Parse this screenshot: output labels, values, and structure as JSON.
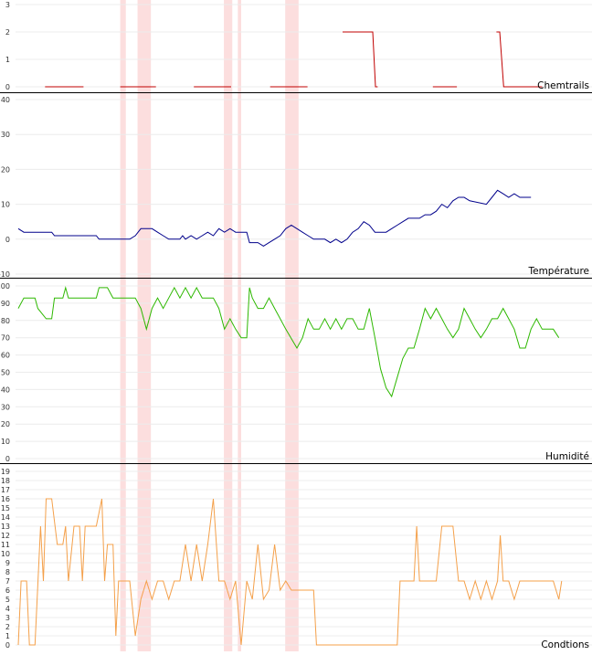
{
  "chart_data": [
    {
      "type": "line",
      "title": "Chemtrails",
      "ylim": [
        0,
        3
      ],
      "yticks": [
        0,
        1,
        2,
        3
      ],
      "x_range": [
        0,
        100
      ],
      "grid": true,
      "color": "#c00000",
      "series": [
        {
          "segments": [
            [
              [
                4.8,
                0
              ],
              [
                11.7,
                0
              ]
            ],
            [
              [
                18.3,
                0
              ],
              [
                24.7,
                0
              ]
            ],
            [
              [
                31.5,
                0
              ],
              [
                38.2,
                0
              ]
            ],
            [
              [
                45.2,
                0
              ],
              [
                51.9,
                0
              ]
            ],
            [
              [
                58.2,
                2
              ],
              [
                63.6,
                2
              ],
              [
                64.1,
                0
              ],
              [
                64.5,
                0
              ]
            ],
            [
              [
                74.4,
                0
              ],
              [
                78.7,
                0
              ]
            ],
            [
              [
                85.8,
                2
              ],
              [
                86.4,
                2
              ],
              [
                87.1,
                0
              ],
              [
                94,
                0
              ]
            ]
          ]
        }
      ]
    },
    {
      "type": "line",
      "title": "Température",
      "ylim": [
        -10,
        40
      ],
      "yticks": [
        -10,
        0,
        10,
        20,
        30,
        40
      ],
      "x_range": [
        0,
        100
      ],
      "grid": true,
      "color": "#00008b",
      "highlight_color": "#7b1fa2",
      "series": [
        {
          "points": [
            [
              0,
              3
            ],
            [
              1,
              2
            ],
            [
              6,
              2
            ],
            [
              6.5,
              1
            ],
            [
              14,
              1
            ],
            [
              14.5,
              0
            ],
            [
              20,
              0
            ],
            [
              21,
              1
            ],
            [
              22,
              3
            ],
            [
              24,
              3
            ],
            [
              25,
              2
            ],
            [
              26,
              1
            ],
            [
              27,
              0
            ],
            [
              29,
              0
            ],
            [
              29.5,
              1
            ],
            [
              30,
              0
            ],
            [
              31,
              1
            ],
            [
              32,
              0
            ],
            [
              33,
              1
            ],
            [
              34,
              2
            ],
            [
              35,
              1
            ],
            [
              36,
              3
            ],
            [
              37,
              2
            ],
            [
              38,
              3
            ],
            [
              39,
              2
            ],
            [
              41,
              2
            ],
            [
              41.5,
              -1
            ],
            [
              43,
              -1
            ],
            [
              44,
              -2
            ],
            [
              45,
              -1
            ],
            [
              46,
              0
            ],
            [
              47,
              1
            ],
            [
              48,
              3
            ],
            [
              49,
              4
            ],
            [
              50,
              3
            ],
            [
              51,
              2
            ],
            [
              52,
              1
            ],
            [
              53,
              0
            ],
            [
              55,
              0
            ],
            [
              56,
              -1
            ],
            [
              57,
              0
            ],
            [
              58,
              -1
            ],
            [
              59,
              0
            ],
            [
              60,
              2
            ],
            [
              61,
              3
            ],
            [
              62,
              5
            ],
            [
              63,
              4
            ],
            [
              64,
              2
            ],
            [
              66,
              2
            ],
            [
              67,
              3
            ],
            [
              68,
              4
            ],
            [
              69,
              5
            ],
            [
              70,
              6
            ],
            [
              72,
              6
            ],
            [
              73,
              7
            ],
            [
              74,
              7
            ],
            [
              75,
              8
            ],
            [
              76,
              10
            ],
            [
              77,
              9
            ],
            [
              78,
              11
            ],
            [
              79,
              12
            ],
            [
              80,
              12
            ],
            [
              81,
              11
            ],
            [
              84,
              10
            ],
            [
              85,
              12
            ],
            [
              86,
              14
            ],
            [
              87,
              13
            ],
            [
              88,
              12
            ],
            [
              89,
              13
            ],
            [
              90,
              12
            ],
            [
              92,
              12
            ]
          ]
        }
      ]
    },
    {
      "type": "line",
      "title": "Humidité",
      "ylim": [
        0,
        100
      ],
      "yticks": [
        0,
        10,
        20,
        30,
        40,
        50,
        60,
        70,
        80,
        90,
        100
      ],
      "x_range": [
        0,
        100
      ],
      "grid": true,
      "color": "#2db800",
      "highlight_color": "#a8a020",
      "series": [
        {
          "points": [
            [
              0,
              87
            ],
            [
              1,
              93
            ],
            [
              3,
              93
            ],
            [
              3.5,
              87
            ],
            [
              5,
              81
            ],
            [
              6,
              81
            ],
            [
              6.5,
              93
            ],
            [
              8,
              93
            ],
            [
              8.5,
              99
            ],
            [
              9,
              93
            ],
            [
              14,
              93
            ],
            [
              14.5,
              99
            ],
            [
              16,
              99
            ],
            [
              17,
              93
            ],
            [
              21,
              93
            ],
            [
              22,
              87
            ],
            [
              23,
              75
            ],
            [
              24,
              87
            ],
            [
              25,
              93
            ],
            [
              26,
              87
            ],
            [
              27,
              93
            ],
            [
              28,
              99
            ],
            [
              29,
              93
            ],
            [
              30,
              99
            ],
            [
              31,
              93
            ],
            [
              32,
              99
            ],
            [
              33,
              93
            ],
            [
              35,
              93
            ],
            [
              36,
              87
            ],
            [
              37,
              75
            ],
            [
              38,
              81
            ],
            [
              39,
              75
            ],
            [
              40,
              70
            ],
            [
              41,
              70
            ],
            [
              41.5,
              99
            ],
            [
              42,
              93
            ],
            [
              43,
              87
            ],
            [
              44,
              87
            ],
            [
              45,
              93
            ],
            [
              46,
              87
            ],
            [
              47,
              81
            ],
            [
              48,
              75
            ],
            [
              50,
              64
            ],
            [
              51,
              70
            ],
            [
              52,
              81
            ],
            [
              53,
              75
            ],
            [
              54,
              75
            ],
            [
              55,
              81
            ],
            [
              56,
              75
            ],
            [
              57,
              81
            ],
            [
              58,
              75
            ],
            [
              59,
              81
            ],
            [
              60,
              81
            ],
            [
              61,
              75
            ],
            [
              62,
              75
            ],
            [
              63,
              87
            ],
            [
              64,
              70
            ],
            [
              65,
              52
            ],
            [
              66,
              41
            ],
            [
              67,
              36
            ],
            [
              68,
              47
            ],
            [
              69,
              58
            ],
            [
              70,
              64
            ],
            [
              71,
              64
            ],
            [
              72,
              75
            ],
            [
              73,
              87
            ],
            [
              74,
              81
            ],
            [
              75,
              87
            ],
            [
              76,
              81
            ],
            [
              77,
              75
            ],
            [
              78,
              70
            ],
            [
              79,
              75
            ],
            [
              80,
              87
            ],
            [
              81,
              81
            ],
            [
              82,
              75
            ],
            [
              83,
              70
            ],
            [
              84,
              75
            ],
            [
              85,
              81
            ],
            [
              86,
              81
            ],
            [
              87,
              87
            ],
            [
              88,
              81
            ],
            [
              89,
              75
            ],
            [
              90,
              64
            ],
            [
              91,
              64
            ],
            [
              92,
              75
            ],
            [
              93,
              81
            ],
            [
              94,
              75
            ],
            [
              96,
              75
            ],
            [
              97,
              70
            ]
          ]
        }
      ]
    },
    {
      "type": "line",
      "title": "Condtions",
      "ylim": [
        0,
        19
      ],
      "yticks": [
        0,
        1,
        2,
        3,
        4,
        5,
        6,
        7,
        8,
        9,
        10,
        11,
        12,
        13,
        14,
        15,
        16,
        17,
        18,
        19
      ],
      "x_range": [
        0,
        100
      ],
      "grid": true,
      "color": "#f4a04a",
      "highlight_color": "#e8c070",
      "series": [
        {
          "points": [
            [
              0,
              0
            ],
            [
              0.5,
              7
            ],
            [
              1.5,
              7
            ],
            [
              2,
              0
            ],
            [
              3,
              0
            ],
            [
              4,
              13
            ],
            [
              4.5,
              7
            ],
            [
              5,
              16
            ],
            [
              6,
              16
            ],
            [
              7,
              11
            ],
            [
              8,
              11
            ],
            [
              8.5,
              13
            ],
            [
              9,
              7
            ],
            [
              10,
              13
            ],
            [
              11,
              13
            ],
            [
              11.5,
              7
            ],
            [
              12,
              13
            ],
            [
              14,
              13
            ],
            [
              15,
              16
            ],
            [
              15.5,
              7
            ],
            [
              16,
              11
            ],
            [
              17,
              11
            ],
            [
              17.5,
              1
            ],
            [
              18,
              7
            ],
            [
              20,
              7
            ],
            [
              21,
              1
            ],
            [
              22,
              5
            ],
            [
              23,
              7
            ],
            [
              24,
              5
            ],
            [
              25,
              7
            ],
            [
              26,
              7
            ],
            [
              27,
              5
            ],
            [
              28,
              7
            ],
            [
              29,
              7
            ],
            [
              30,
              11
            ],
            [
              31,
              7
            ],
            [
              32,
              11
            ],
            [
              33,
              7
            ],
            [
              34,
              11
            ],
            [
              35,
              16
            ],
            [
              36,
              7
            ],
            [
              37,
              7
            ],
            [
              38,
              5
            ],
            [
              39,
              7
            ],
            [
              40,
              0
            ],
            [
              41,
              7
            ],
            [
              42,
              5
            ],
            [
              43,
              11
            ],
            [
              44,
              5
            ],
            [
              45,
              6
            ],
            [
              46,
              11
            ],
            [
              47,
              6
            ],
            [
              48,
              7
            ],
            [
              49,
              6
            ],
            [
              50,
              6
            ],
            [
              51,
              6
            ],
            [
              52,
              6
            ],
            [
              53,
              6
            ],
            [
              53.5,
              0
            ],
            [
              56,
              0
            ],
            [
              61,
              0
            ],
            [
              68,
              0
            ],
            [
              68.5,
              7
            ],
            [
              71,
              7
            ],
            [
              71.5,
              13
            ],
            [
              72,
              7
            ],
            [
              75,
              7
            ],
            [
              76,
              13
            ],
            [
              78,
              13
            ],
            [
              79,
              7
            ],
            [
              80,
              7
            ],
            [
              81,
              5
            ],
            [
              82,
              7
            ],
            [
              83,
              5
            ],
            [
              84,
              7
            ],
            [
              85,
              5
            ],
            [
              86,
              7
            ],
            [
              86.5,
              12
            ],
            [
              87,
              7
            ],
            [
              88,
              7
            ],
            [
              89,
              5
            ],
            [
              90,
              7
            ],
            [
              93,
              7
            ],
            [
              94,
              7
            ],
            [
              96,
              7
            ],
            [
              97,
              5
            ],
            [
              97.5,
              7
            ]
          ]
        }
      ]
    }
  ],
  "highlight_bands": [
    {
      "x0": 18.3,
      "x1": 19.3
    },
    {
      "x0": 21.4,
      "x1": 23.8
    },
    {
      "x0": 36.9,
      "x1": 38.4
    },
    {
      "x0": 39.4,
      "x1": 40.0
    },
    {
      "x0": 47.9,
      "x1": 50.3
    }
  ],
  "colors": {
    "band": "#fcdede",
    "grid": "#ececec",
    "axis": "#000000",
    "tick": "#333333"
  }
}
